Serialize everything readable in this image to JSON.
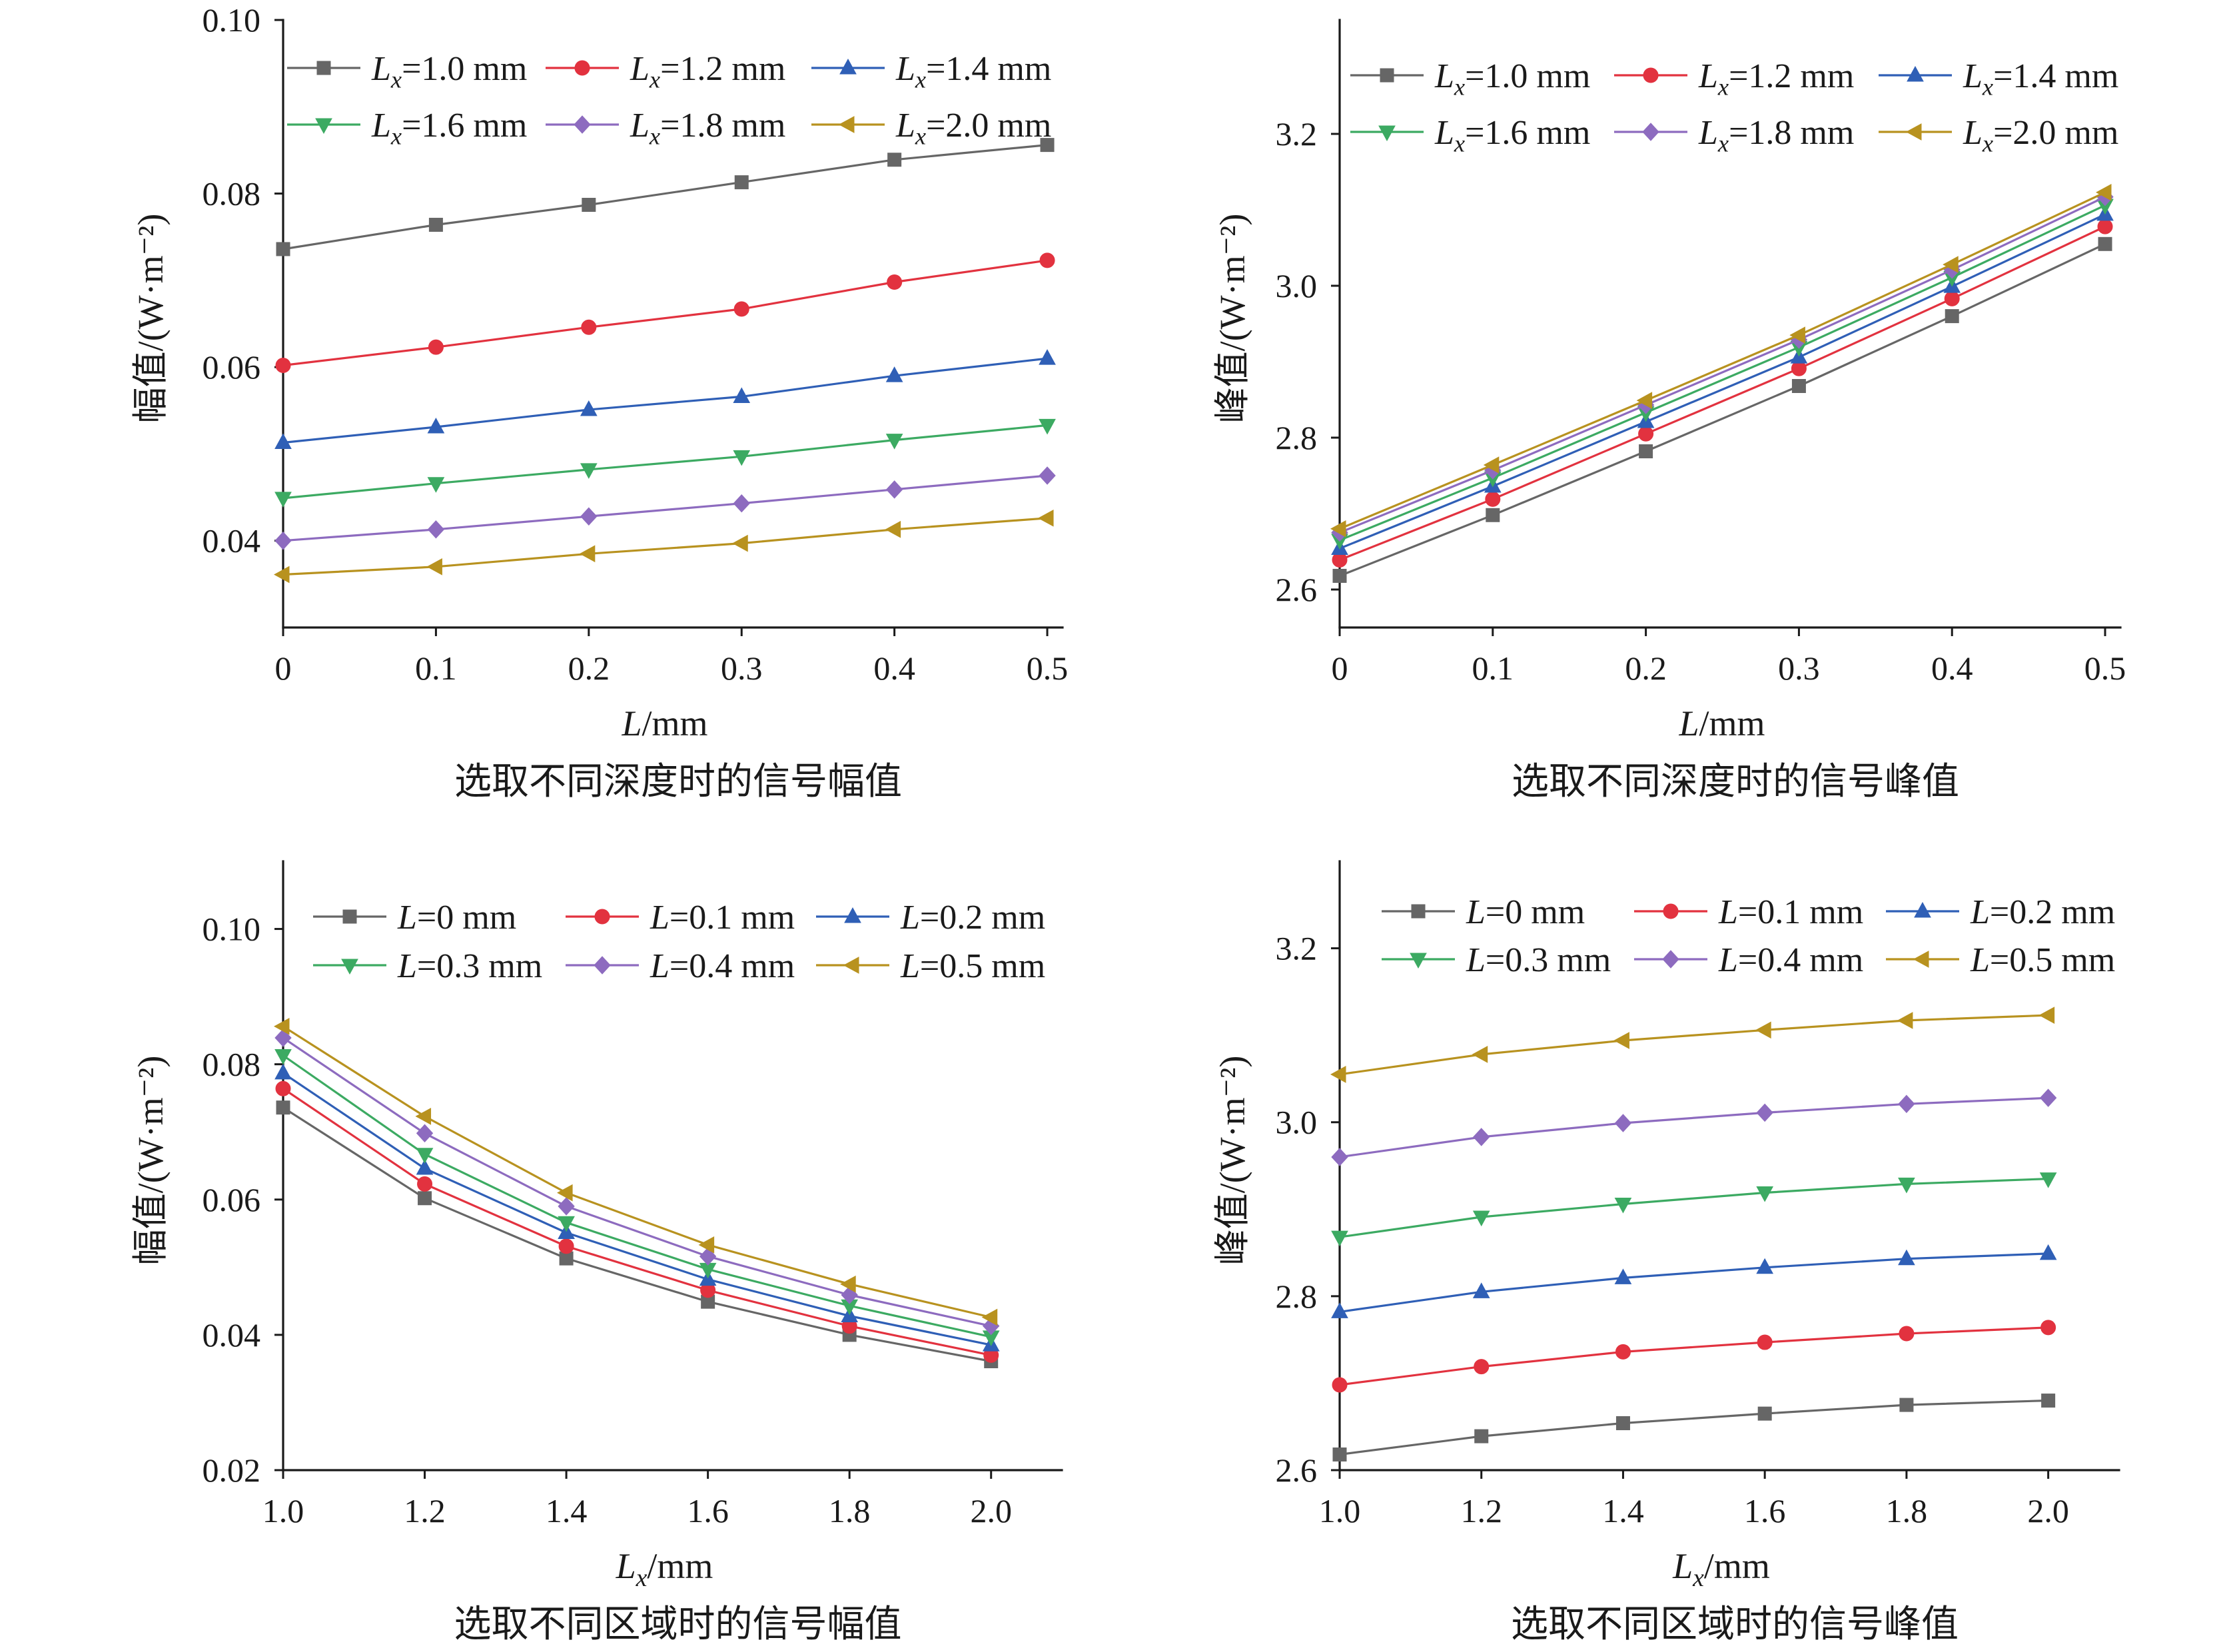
{
  "chart_data": [
    {
      "type": "line",
      "title": "选取不同深度时的信号幅值",
      "xlabel": "L/mm",
      "ylabel": "幅值/(W·m⁻²)",
      "x": [
        0,
        0.1,
        0.2,
        0.3,
        0.4,
        0.5
      ],
      "xticks": [
        "0",
        "0.1",
        "0.2",
        "0.3",
        "0.4",
        "0.5"
      ],
      "yticks": [
        "0.04",
        "0.06",
        "0.08",
        "0.10"
      ],
      "xlim": [
        0,
        0.51
      ],
      "ylim": [
        0.03,
        0.1
      ],
      "grid": false,
      "legend": "top",
      "series": [
        {
          "name": "Lx=1.0 mm",
          "color": "#666666",
          "marker": "square",
          "values": [
            0.0736,
            0.0764,
            0.0787,
            0.0813,
            0.0839,
            0.0856
          ]
        },
        {
          "name": "Lx=1.2 mm",
          "color": "#e2323f",
          "marker": "circle",
          "values": [
            0.0602,
            0.0623,
            0.0646,
            0.0667,
            0.0698,
            0.0723
          ]
        },
        {
          "name": "Lx=1.4 mm",
          "color": "#2f5fb6",
          "marker": "triangle-up",
          "values": [
            0.0513,
            0.0531,
            0.0551,
            0.0566,
            0.059,
            0.061
          ]
        },
        {
          "name": "Lx=1.6 mm",
          "color": "#3caa62",
          "marker": "triangle-down",
          "values": [
            0.0449,
            0.0466,
            0.0482,
            0.0497,
            0.0516,
            0.0533
          ]
        },
        {
          "name": "Lx=1.8 mm",
          "color": "#8d6bbf",
          "marker": "diamond",
          "values": [
            0.04,
            0.0413,
            0.0428,
            0.0443,
            0.0459,
            0.0475
          ]
        },
        {
          "name": "Lx=2.0 mm",
          "color": "#b8921f",
          "marker": "triangle-left",
          "values": [
            0.0361,
            0.037,
            0.0385,
            0.0397,
            0.0413,
            0.0426
          ]
        }
      ]
    },
    {
      "type": "line",
      "title": "选取不同深度时的信号峰值",
      "xlabel": "L/mm",
      "ylabel": "峰值/(W·m⁻²)",
      "x": [
        0,
        0.1,
        0.2,
        0.3,
        0.4,
        0.5
      ],
      "xticks": [
        "0",
        "0.1",
        "0.2",
        "0.3",
        "0.4",
        "0.5"
      ],
      "yticks": [
        "2.6",
        "2.8",
        "3.0",
        "3.2"
      ],
      "xlim": [
        0,
        0.51
      ],
      "ylim": [
        2.55,
        3.35
      ],
      "grid": false,
      "legend": "top",
      "series": [
        {
          "name": "Lx=1.0 mm",
          "color": "#666666",
          "marker": "square",
          "values": [
            2.618,
            2.698,
            2.782,
            2.868,
            2.96,
            3.055
          ]
        },
        {
          "name": "Lx=1.2 mm",
          "color": "#e2323f",
          "marker": "circle",
          "values": [
            2.639,
            2.719,
            2.805,
            2.891,
            2.983,
            3.078
          ]
        },
        {
          "name": "Lx=1.4 mm",
          "color": "#2f5fb6",
          "marker": "triangle-up",
          "values": [
            2.654,
            2.736,
            2.821,
            2.906,
            2.999,
            3.094
          ]
        },
        {
          "name": "Lx=1.6 mm",
          "color": "#3caa62",
          "marker": "triangle-down",
          "values": [
            2.665,
            2.747,
            2.833,
            2.919,
            3.011,
            3.106
          ]
        },
        {
          "name": "Lx=1.8 mm",
          "color": "#8d6bbf",
          "marker": "diamond",
          "values": [
            2.675,
            2.757,
            2.843,
            2.929,
            3.021,
            3.117
          ]
        },
        {
          "name": "Lx=2.0 mm",
          "color": "#b8921f",
          "marker": "triangle-left",
          "values": [
            2.68,
            2.764,
            2.849,
            2.935,
            3.028,
            3.123
          ]
        }
      ]
    },
    {
      "type": "line",
      "title": "选取不同区域时的信号幅值",
      "xlabel": "Lx/mm",
      "ylabel": "幅值/(W·m⁻²)",
      "x": [
        1.0,
        1.2,
        1.4,
        1.6,
        1.8,
        2.0
      ],
      "xticks": [
        "1.0",
        "1.2",
        "1.4",
        "1.6",
        "1.8",
        "2.0"
      ],
      "yticks": [
        "0.02",
        "0.04",
        "0.06",
        "0.08",
        "0.10"
      ],
      "xlim": [
        1.0,
        2.1
      ],
      "ylim": [
        0.02,
        0.11
      ],
      "grid": false,
      "legend": "top",
      "series": [
        {
          "name": "L=0 mm",
          "color": "#666666",
          "marker": "square",
          "values": [
            0.0736,
            0.0602,
            0.0513,
            0.0449,
            0.04,
            0.0361
          ]
        },
        {
          "name": "L=0.1 mm",
          "color": "#e2323f",
          "marker": "circle",
          "values": [
            0.0764,
            0.0623,
            0.0531,
            0.0466,
            0.0413,
            0.037
          ]
        },
        {
          "name": "L=0.2 mm",
          "color": "#2f5fb6",
          "marker": "triangle-up",
          "values": [
            0.0787,
            0.0646,
            0.0551,
            0.0482,
            0.0428,
            0.0385
          ]
        },
        {
          "name": "L=0.3 mm",
          "color": "#3caa62",
          "marker": "triangle-down",
          "values": [
            0.0813,
            0.0667,
            0.0566,
            0.0497,
            0.0443,
            0.0397
          ]
        },
        {
          "name": "L=0.4 mm",
          "color": "#8d6bbf",
          "marker": "diamond",
          "values": [
            0.0839,
            0.0698,
            0.059,
            0.0516,
            0.0459,
            0.0413
          ]
        },
        {
          "name": "L=0.5 mm",
          "color": "#b8921f",
          "marker": "triangle-left",
          "values": [
            0.0856,
            0.0723,
            0.061,
            0.0533,
            0.0475,
            0.0426
          ]
        }
      ]
    },
    {
      "type": "line",
      "title": "选取不同区域时的信号峰值",
      "xlabel": "Lx/mm",
      "ylabel": "峰值/(W·m⁻²)",
      "x": [
        1.0,
        1.2,
        1.4,
        1.6,
        1.8,
        2.0
      ],
      "xticks": [
        "1.0",
        "1.2",
        "1.4",
        "1.6",
        "1.8",
        "2.0"
      ],
      "yticks": [
        "2.6",
        "2.8",
        "3.0",
        "3.2"
      ],
      "xlim": [
        1.0,
        2.1
      ],
      "ylim": [
        2.6,
        3.3
      ],
      "grid": false,
      "legend": "top",
      "series": [
        {
          "name": "L=0 mm",
          "color": "#666666",
          "marker": "square",
          "values": [
            2.618,
            2.639,
            2.654,
            2.665,
            2.675,
            2.68
          ]
        },
        {
          "name": "L=0.1 mm",
          "color": "#e2323f",
          "marker": "circle",
          "values": [
            2.698,
            2.719,
            2.736,
            2.747,
            2.757,
            2.764
          ]
        },
        {
          "name": "L=0.2 mm",
          "color": "#2f5fb6",
          "marker": "triangle-up",
          "values": [
            2.782,
            2.805,
            2.821,
            2.833,
            2.843,
            2.849
          ]
        },
        {
          "name": "L=0.3 mm",
          "color": "#3caa62",
          "marker": "triangle-down",
          "values": [
            2.868,
            2.891,
            2.906,
            2.919,
            2.929,
            2.935
          ]
        },
        {
          "name": "L=0.4 mm",
          "color": "#8d6bbf",
          "marker": "diamond",
          "values": [
            2.96,
            2.983,
            2.999,
            3.011,
            3.021,
            3.028
          ]
        },
        {
          "name": "L=0.5 mm",
          "color": "#b8921f",
          "marker": "triangle-left",
          "values": [
            3.055,
            3.078,
            3.094,
            3.106,
            3.117,
            3.123
          ]
        }
      ]
    }
  ]
}
